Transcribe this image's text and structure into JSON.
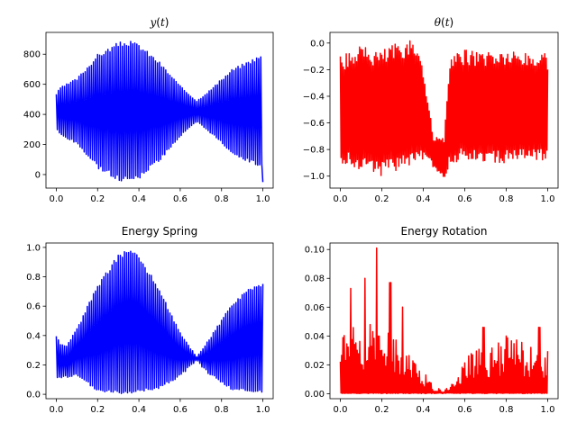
{
  "chart_data": [
    {
      "type": "line",
      "title_var": "y",
      "title_arg": "t",
      "xlim": [
        -0.05,
        1.05
      ],
      "ylim": [
        -90,
        945
      ],
      "xticks": [
        0.0,
        0.2,
        0.4,
        0.6,
        0.8,
        1.0
      ],
      "xtick_labels": [
        "0.0",
        "0.2",
        "0.4",
        "0.6",
        "0.8",
        "1.0"
      ],
      "yticks": [
        0,
        200,
        400,
        600,
        800
      ],
      "ytick_labels": [
        "0",
        "200",
        "400",
        "600",
        "800"
      ],
      "color": "#0000ff",
      "signal": {
        "kind": "symmetric",
        "center": 420,
        "cycles": 100,
        "envelope": {
          "x": [
            0.0,
            0.02,
            0.1,
            0.2,
            0.3,
            0.35,
            0.4,
            0.5,
            0.6,
            0.68,
            0.75,
            0.85,
            0.95,
            1.0
          ],
          "amp": [
            120,
            160,
            220,
            380,
            460,
            470,
            450,
            330,
            170,
            70,
            150,
            280,
            350,
            380
          ]
        }
      }
    },
    {
      "type": "line",
      "title_var": "θ",
      "title_arg": "t",
      "xlim": [
        -0.05,
        1.05
      ],
      "ylim": [
        -1.09,
        0.08
      ],
      "xticks": [
        0.0,
        0.2,
        0.4,
        0.6,
        0.8,
        1.0
      ],
      "xtick_labels": [
        "0.0",
        "0.2",
        "0.4",
        "0.6",
        "0.8",
        "1.0"
      ],
      "yticks": [
        0.0,
        -0.2,
        -0.4,
        -0.6,
        -0.8,
        -1.0
      ],
      "ytick_labels": [
        "0.0",
        "−0.2",
        "−0.4",
        "−0.6",
        "−0.8",
        "−1.0"
      ],
      "color": "#ff0000",
      "signal": {
        "kind": "band",
        "cycles": 140,
        "top": {
          "x": [
            0.0,
            0.1,
            0.2,
            0.3,
            0.38,
            0.42,
            0.45,
            0.5,
            0.53,
            0.6,
            0.8,
            1.0
          ],
          "v": [
            -0.1,
            -0.02,
            -0.05,
            0.03,
            0.0,
            -0.4,
            -0.7,
            -0.72,
            -0.1,
            -0.05,
            -0.05,
            -0.08
          ]
        },
        "bottom": {
          "x": [
            0.0,
            0.1,
            0.2,
            0.3,
            0.38,
            0.42,
            0.45,
            0.5,
            0.53,
            0.6,
            0.8,
            1.0
          ],
          "v": [
            -0.9,
            -0.95,
            -1.0,
            -0.95,
            -0.9,
            -0.85,
            -0.95,
            -1.02,
            -0.9,
            -0.88,
            -0.9,
            -0.88
          ]
        }
      }
    },
    {
      "type": "line",
      "title": "Energy Spring",
      "xlim": [
        -0.05,
        1.05
      ],
      "ylim": [
        -0.03,
        1.03
      ],
      "xticks": [
        0.0,
        0.2,
        0.4,
        0.6,
        0.8,
        1.0
      ],
      "xtick_labels": [
        "0.0",
        "0.2",
        "0.4",
        "0.6",
        "0.8",
        "1.0"
      ],
      "yticks": [
        0.0,
        0.2,
        0.4,
        0.6,
        0.8,
        1.0
      ],
      "ytick_labels": [
        "0.0",
        "0.2",
        "0.4",
        "0.6",
        "0.8",
        "1.0"
      ],
      "color": "#0000ff",
      "signal": {
        "kind": "energy",
        "cycles": 100,
        "top": {
          "x": [
            0.0,
            0.02,
            0.05,
            0.1,
            0.2,
            0.3,
            0.35,
            0.4,
            0.5,
            0.6,
            0.68,
            0.75,
            0.85,
            0.95,
            1.0
          ],
          "v": [
            0.4,
            0.34,
            0.33,
            0.45,
            0.75,
            0.95,
            1.0,
            0.95,
            0.72,
            0.42,
            0.26,
            0.4,
            0.62,
            0.74,
            0.76
          ]
        },
        "bottom": {
          "x": [
            0.0,
            0.1,
            0.2,
            0.35,
            0.5,
            0.6,
            0.68,
            0.75,
            0.85,
            1.0
          ],
          "v": [
            0.1,
            0.12,
            0.02,
            0.0,
            0.04,
            0.12,
            0.22,
            0.12,
            0.03,
            0.01
          ]
        }
      }
    },
    {
      "type": "line",
      "title": "Energy Rotation",
      "xlim": [
        -0.05,
        1.05
      ],
      "ylim": [
        -0.0035,
        0.1045
      ],
      "xticks": [
        0.0,
        0.2,
        0.4,
        0.6,
        0.8,
        1.0
      ],
      "xtick_labels": [
        "0.0",
        "0.2",
        "0.4",
        "0.6",
        "0.8",
        "1.0"
      ],
      "yticks": [
        0.0,
        0.02,
        0.04,
        0.06,
        0.08,
        0.1
      ],
      "ytick_labels": [
        "0.00",
        "0.02",
        "0.04",
        "0.06",
        "0.08",
        "0.10"
      ],
      "color": "#ff0000",
      "signal": {
        "kind": "spiky",
        "cycles": 160,
        "base": {
          "x": [
            0.0,
            0.05,
            0.1,
            0.2,
            0.3,
            0.38,
            0.45,
            0.5,
            0.55,
            0.6,
            0.7,
            0.8,
            0.9,
            1.0
          ],
          "v": [
            0.04,
            0.045,
            0.05,
            0.048,
            0.035,
            0.02,
            0.005,
            0.002,
            0.01,
            0.025,
            0.035,
            0.04,
            0.035,
            0.03
          ]
        },
        "peaks": [
          [
            0.05,
            0.073
          ],
          [
            0.12,
            0.08
          ],
          [
            0.175,
            0.101
          ],
          [
            0.24,
            0.077
          ],
          [
            0.3,
            0.06
          ],
          [
            0.69,
            0.046
          ],
          [
            0.8,
            0.04
          ],
          [
            0.96,
            0.046
          ]
        ]
      }
    }
  ]
}
